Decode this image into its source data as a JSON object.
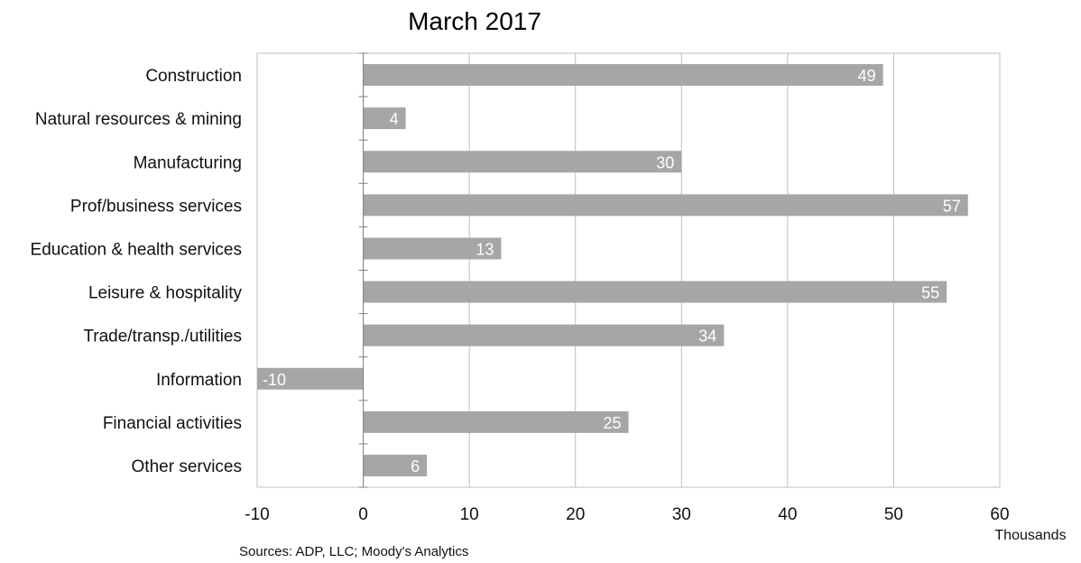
{
  "chart_data": {
    "type": "bar",
    "orientation": "horizontal",
    "title": "March 2017",
    "categories": [
      "Construction",
      "Natural resources & mining",
      "Manufacturing",
      "Prof/business services",
      "Education & health services",
      "Leisure & hospitality",
      "Trade/transp./utilities",
      "Information",
      "Financial activities",
      "Other services"
    ],
    "values": [
      49,
      4,
      30,
      57,
      13,
      55,
      34,
      -10,
      25,
      6
    ],
    "data_labels": [
      "49",
      "4",
      "30",
      "57",
      "13",
      "55",
      "34",
      "-10",
      "25",
      "6"
    ],
    "xlim": [
      -10,
      60
    ],
    "xticks": [
      "-10",
      "0",
      "10",
      "20",
      "30",
      "40",
      "50",
      "60"
    ],
    "xtick_values": [
      -10,
      0,
      10,
      20,
      30,
      40,
      50,
      60
    ],
    "xlabel": "Thousands",
    "ylabel": "",
    "grid": "vertical",
    "legend": "none",
    "source": "Sources: ADP, LLC; Moody's Analytics",
    "colors": {
      "bar": "#a6a6a6",
      "grid": "#bfbfbf",
      "axis": "#808080",
      "data_label": "#ffffff"
    }
  }
}
